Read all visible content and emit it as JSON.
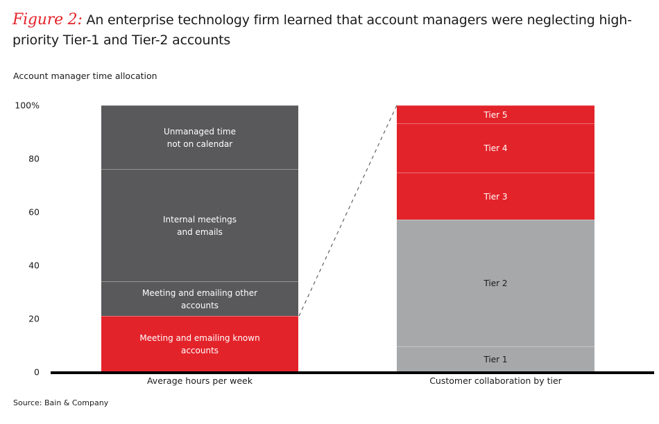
{
  "title": {
    "figure_label": "Figure 2:",
    "text": " An enterprise technology firm learned that account managers were neglecting high-priority Tier-1 and Tier-2 accounts"
  },
  "subtitle": "Account manager time allocation",
  "source": "Source: Bain & Company",
  "colors": {
    "red": "#e3232a",
    "dark_gray": "#59595b",
    "light_gray": "#a7a8aa",
    "axis": "#000000"
  },
  "chart_data": {
    "type": "bar",
    "stacked": true,
    "title": "Figure 2: An enterprise technology firm learned that account managers were neglecting high-priority Tier-1 and Tier-2 accounts",
    "ylabel": "Account manager time allocation",
    "ylim": [
      0,
      100
    ],
    "yticks": [
      "0",
      "20",
      "40",
      "60",
      "80",
      "100%"
    ],
    "grid": false,
    "categories": [
      "Average hours per week",
      "Customer collaboration by tier"
    ],
    "bars": [
      {
        "category": "Average hours per week",
        "segments": [
          {
            "label": "Meeting and emailing known\naccounts",
            "value": 21,
            "color": "#e3232a"
          },
          {
            "label": "Meeting and emailing other\naccounts",
            "value": 13,
            "color": "#59595b"
          },
          {
            "label": "Internal meetings\nand emails",
            "value": 42,
            "color": "#59595b"
          },
          {
            "label": "Unmanaged time\nnot on calendar",
            "value": 24,
            "color": "#59595b"
          }
        ]
      },
      {
        "category": "Customer collaboration by tier",
        "segments": [
          {
            "label": "Tier 1",
            "value": 9.6,
            "color": "#a7a8aa"
          },
          {
            "label": "Tier 2",
            "value": 47.5,
            "color": "#a7a8aa"
          },
          {
            "label": "Tier 3",
            "value": 17.7,
            "color": "#e3232a"
          },
          {
            "label": "Tier 4",
            "value": 18.4,
            "color": "#e3232a"
          },
          {
            "label": "Tier 5",
            "value": 6.8,
            "color": "#e3232a"
          }
        ]
      }
    ],
    "annotations": [
      "Dashed line connecting top of 'Meeting and emailing known accounts' segment to top of the tier bar (breakdown of known-account time)"
    ]
  }
}
